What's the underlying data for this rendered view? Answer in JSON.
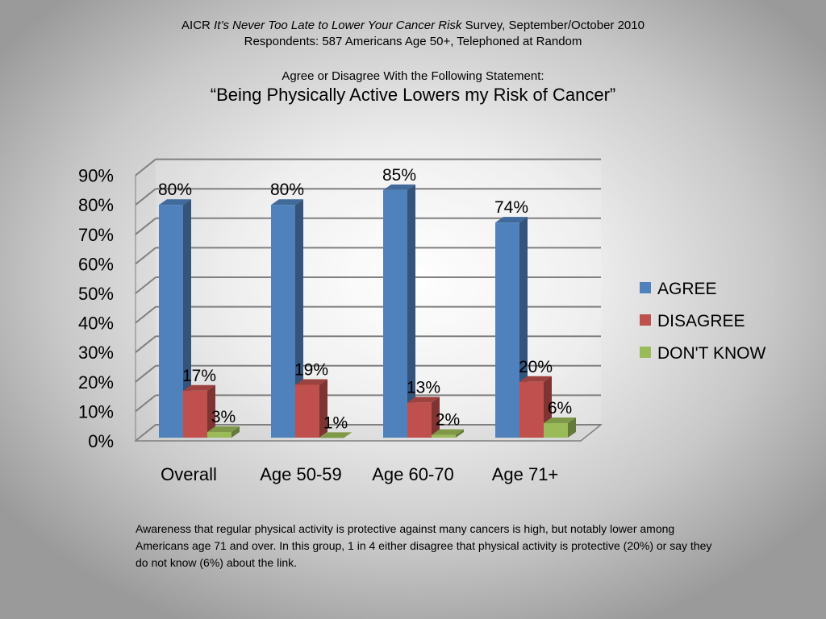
{
  "header": {
    "line1_pre": "AICR ",
    "line1_italic": "It’s Never Too Late to Lower Your Cancer Risk",
    "line1_post": " Survey, September/October 2010",
    "line2": "Respondents: 587 Americans Age 50+, Telephoned at Random",
    "prompt": "Agree or Disagree With the Following Statement:",
    "statement": "“Being Physically Active Lowers my Risk of Cancer”"
  },
  "caption": "Awareness that regular physical activity is protective against many cancers is high, but notably lower among Americans age 71 and over. In this group, 1 in 4 either disagree that physical activity is protective (20%) or say they do not know (6%) about the link.",
  "colors": {
    "agree": "#4f81bd",
    "disagree": "#c0504d",
    "dont_know": "#9bbb59"
  },
  "chart_data": {
    "type": "bar",
    "categories": [
      "Overall",
      "Age 50-59",
      "Age 60-70",
      "Age 71+"
    ],
    "series": [
      {
        "name": "AGREE",
        "values": [
          80,
          80,
          85,
          74
        ],
        "labels": [
          "80%",
          "80%",
          "85%",
          "74%"
        ]
      },
      {
        "name": "DISAGREE",
        "values": [
          17,
          19,
          13,
          20
        ],
        "labels": [
          "17%",
          "19%",
          "13%",
          "20%"
        ]
      },
      {
        "name": "DON'T KNOW",
        "values": [
          3,
          1,
          2,
          6
        ],
        "labels": [
          "3%",
          "1%",
          "2%",
          "6%"
        ]
      }
    ],
    "ylim": [
      0,
      90
    ],
    "yticks": [
      "0%",
      "10%",
      "20%",
      "30%",
      "40%",
      "50%",
      "60%",
      "70%",
      "80%",
      "90%"
    ],
    "grid": true,
    "legend": "right"
  }
}
